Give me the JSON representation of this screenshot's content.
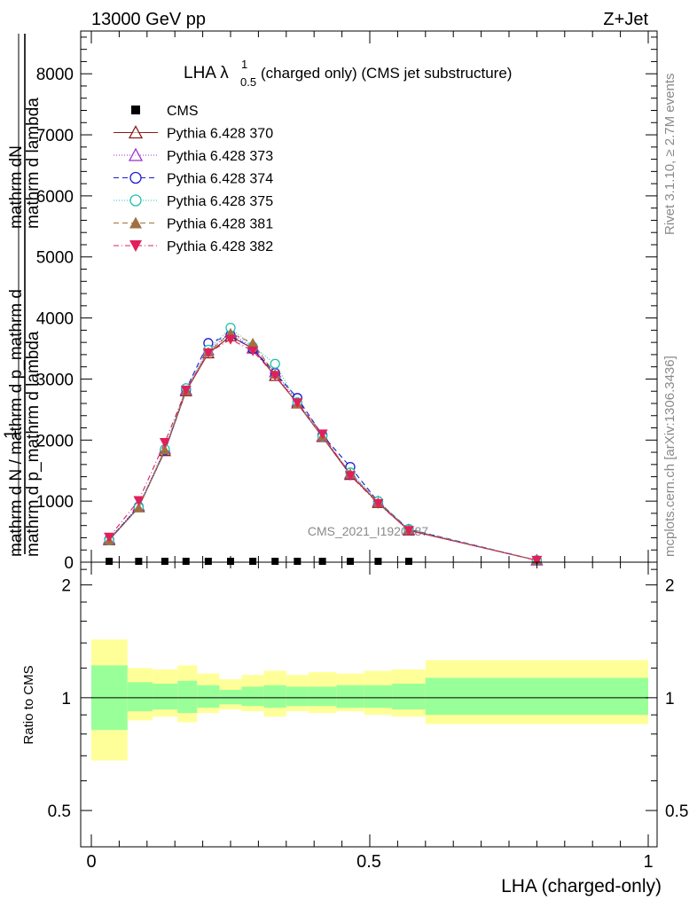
{
  "header": {
    "energy_label": "13000 GeV pp",
    "process_label": "Z+Jet"
  },
  "side": {
    "rivet_label": "Rivet 3.1.10, ≥ 2.7M events",
    "mcplots_label": "mcplots.cern.ch [arXiv:1306.3436]"
  },
  "main_plot": {
    "title_prefix": "LHA λ",
    "title_sup": "1",
    "title_sub": "0.5",
    "title_suffix": " (charged only) (CMS jet substructure)",
    "ylabel_numer_lines": [
      "mathrm d lambda",
      "mathrm dN"
    ],
    "ylabel_denom_lines": [
      "mathrm d p_mathrm d lambda",
      "mathrm d N / mathrm d p_mathrm d"
    ],
    "ylabel_one": "1",
    "watermark": "CMS_2021_I1920187",
    "ytick_labels": [
      "0",
      "1000",
      "2000",
      "3000",
      "4000",
      "5000",
      "6000",
      "7000",
      "8000"
    ]
  },
  "ratio_plot": {
    "ylabel": "Ratio to CMS",
    "ytick_labels": [
      "0.5",
      "1",
      "2"
    ]
  },
  "xaxis": {
    "label": "LHA (charged-only)",
    "tick_labels": [
      "0",
      "0.5",
      "1"
    ]
  },
  "legend": [
    {
      "name": "CMS",
      "color": "#000000",
      "marker": "filled-square",
      "dash": ""
    },
    {
      "name": "Pythia 6.428 370",
      "color": "#8b1a1a",
      "marker": "open-triangle-up",
      "dash": ""
    },
    {
      "name": "Pythia 6.428 373",
      "color": "#9932cc",
      "marker": "open-triangle-up",
      "dash": "1,2"
    },
    {
      "name": "Pythia 6.428 374",
      "color": "#1a1ad0",
      "marker": "open-circle",
      "dash": "6,4"
    },
    {
      "name": "Pythia 6.428 375",
      "color": "#20c0b0",
      "marker": "open-circle",
      "dash": "1,2"
    },
    {
      "name": "Pythia 6.428 381",
      "color": "#a07040",
      "marker": "filled-triangle-up",
      "dash": "6,4"
    },
    {
      "name": "Pythia 6.428 382",
      "color": "#e0205a",
      "marker": "filled-triangle-down",
      "dash": "6,3,1,3"
    }
  ],
  "chart_data": [
    {
      "type": "line",
      "x": [
        0.032,
        0.085,
        0.132,
        0.17,
        0.21,
        0.25,
        0.29,
        0.33,
        0.37,
        0.415,
        0.465,
        0.515,
        0.57,
        0.8
      ],
      "xlim": [
        0,
        1
      ],
      "ylim": [
        0,
        8700
      ],
      "yticks": [
        0,
        1000,
        2000,
        3000,
        4000,
        5000,
        6000,
        7000,
        8000
      ],
      "series": [
        {
          "name": "CMS",
          "values": [
            1,
            1,
            1,
            1,
            1,
            1,
            1,
            1,
            1,
            1,
            1,
            1,
            1,
            null
          ]
        },
        {
          "name": "Pythia 6.428 370",
          "values": [
            360,
            900,
            1820,
            2800,
            3420,
            3700,
            3500,
            3050,
            2600,
            2050,
            1430,
            970,
            520,
            30
          ]
        },
        {
          "name": "Pythia 6.428 373",
          "values": [
            380,
            920,
            1850,
            2820,
            3470,
            3760,
            3510,
            3110,
            2630,
            2060,
            1450,
            990,
            530,
            30
          ]
        },
        {
          "name": "Pythia 6.428 374",
          "values": [
            370,
            910,
            1830,
            2830,
            3590,
            3720,
            3490,
            3100,
            2690,
            2080,
            1560,
            990,
            540,
            30
          ]
        },
        {
          "name": "Pythia 6.428 375",
          "values": [
            360,
            900,
            1850,
            2850,
            3480,
            3840,
            3530,
            3250,
            2620,
            2060,
            1470,
            1000,
            540,
            30
          ]
        },
        {
          "name": "Pythia 6.428 381",
          "values": [
            360,
            890,
            1840,
            2810,
            3440,
            3750,
            3590,
            3080,
            2590,
            2060,
            1450,
            980,
            530,
            30
          ]
        },
        {
          "name": "Pythia 6.428 382",
          "values": [
            410,
            1010,
            1960,
            2820,
            3430,
            3650,
            3460,
            3060,
            2610,
            2100,
            1420,
            960,
            520,
            30
          ]
        }
      ]
    },
    {
      "type": "area",
      "ylabel": "Ratio to CMS",
      "scale": "log",
      "ylim": [
        0.4,
        2.3
      ],
      "yticks": [
        0.5,
        1,
        2
      ],
      "bin_edges": [
        0,
        0.065,
        0.11,
        0.155,
        0.19,
        0.23,
        0.27,
        0.31,
        0.35,
        0.39,
        0.44,
        0.49,
        0.54,
        0.6,
        1.0
      ],
      "reference": 1,
      "stat_band": {
        "low": [
          0.82,
          0.92,
          0.93,
          0.91,
          0.94,
          0.96,
          0.95,
          0.94,
          0.95,
          0.95,
          0.94,
          0.94,
          0.93,
          0.9
        ],
        "high": [
          1.22,
          1.1,
          1.09,
          1.11,
          1.08,
          1.05,
          1.07,
          1.08,
          1.07,
          1.07,
          1.08,
          1.08,
          1.09,
          1.13
        ]
      },
      "total_band": {
        "low": [
          0.68,
          0.87,
          0.89,
          0.86,
          0.91,
          0.93,
          0.92,
          0.89,
          0.92,
          0.91,
          0.92,
          0.9,
          0.89,
          0.85
        ],
        "high": [
          1.43,
          1.2,
          1.19,
          1.22,
          1.16,
          1.12,
          1.15,
          1.18,
          1.15,
          1.17,
          1.16,
          1.18,
          1.19,
          1.26
        ]
      }
    }
  ]
}
